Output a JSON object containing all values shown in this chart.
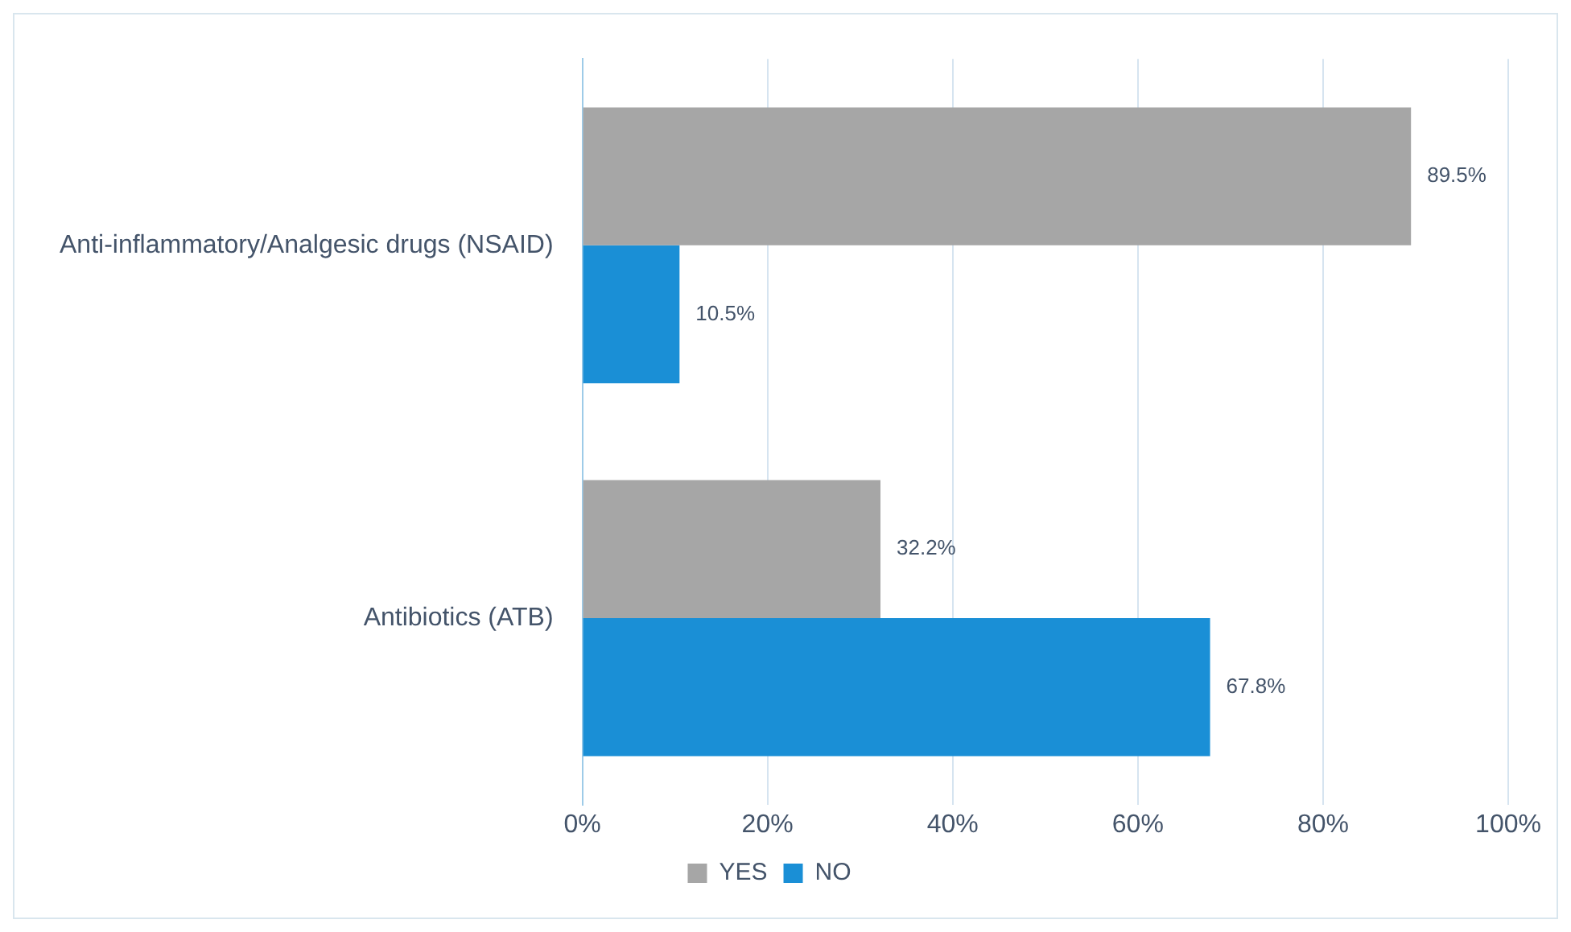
{
  "chart_data": {
    "type": "bar",
    "orientation": "horizontal",
    "categories": [
      "Anti-inflammatory/Analgesic drugs (NSAID)",
      "Antibiotics (ATB)"
    ],
    "series": [
      {
        "name": "YES",
        "color": "#a6a6a6",
        "values": [
          89.5,
          32.2
        ],
        "value_labels": [
          "89.5%",
          "32.2%"
        ]
      },
      {
        "name": "NO",
        "color": "#1a8fd6",
        "values": [
          10.5,
          67.8
        ],
        "value_labels": [
          "10.5%",
          "67.8%"
        ]
      }
    ],
    "xlim": [
      0,
      100
    ],
    "xticks": [
      {
        "value": 0,
        "label": "0%"
      },
      {
        "value": 20,
        "label": "20%"
      },
      {
        "value": 40,
        "label": "40%"
      },
      {
        "value": 60,
        "label": "60%"
      },
      {
        "value": 80,
        "label": "80%"
      },
      {
        "value": 100,
        "label": "100%"
      }
    ],
    "grid": "x",
    "legend": "bottom"
  }
}
